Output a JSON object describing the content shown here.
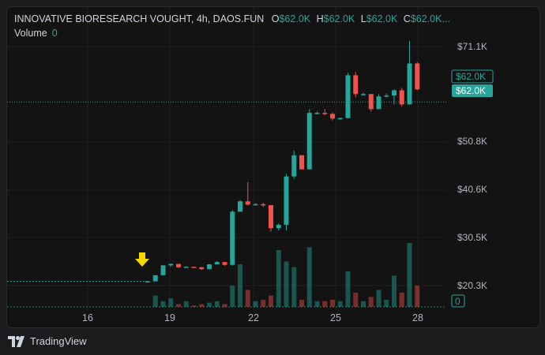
{
  "legend": {
    "title": "INNOVATIVE BIORESEARCH VOUGHT, 4h, DAOS.FUN",
    "o_label": "O",
    "o_value": "$62.0K",
    "h_label": "H",
    "h_value": "$62.0K",
    "l_label": "L",
    "l_value": "$62.0K",
    "c_label": "C",
    "c_value": "$62.0K...",
    "volume_label": "Volume",
    "volume_value": "0"
  },
  "footer": {
    "brand": "TradingView"
  },
  "colors": {
    "up": "#26a69a",
    "down": "#ef5350",
    "background": "#131313",
    "marker": "#f5d800"
  },
  "chart_data": {
    "type": "candlestick",
    "title": "INNOVATIVE BIORESEARCH VOUGHT, 4h, DAOS.FUN",
    "price_axis_ticks": [
      "$71.1K",
      "$50.8K",
      "$40.6K",
      "$30.5K",
      "$20.3K"
    ],
    "price_axis_values": [
      71100,
      50800,
      40600,
      30500,
      20300
    ],
    "time_axis_ticks": [
      "16",
      "19",
      "22",
      "25",
      "28"
    ],
    "current_price_label": "$62.0K",
    "last_price_label": "$62.0K",
    "volume_axis_label": "0",
    "candles": [
      {
        "o": 21200,
        "h": 21200,
        "l": 21200,
        "c": 21200
      },
      {
        "o": 21200,
        "h": 22500,
        "l": 21200,
        "c": 22500
      },
      {
        "o": 22500,
        "h": 24600,
        "l": 22500,
        "c": 24600
      },
      {
        "o": 24600,
        "h": 25000,
        "l": 24300,
        "c": 24900
      },
      {
        "o": 24900,
        "h": 24900,
        "l": 24000,
        "c": 24200
      },
      {
        "o": 24200,
        "h": 24400,
        "l": 24200,
        "c": 24300
      },
      {
        "o": 24300,
        "h": 24300,
        "l": 24100,
        "c": 24200
      },
      {
        "o": 24200,
        "h": 24200,
        "l": 23600,
        "c": 23800
      },
      {
        "o": 23800,
        "h": 24900,
        "l": 23800,
        "c": 24800
      },
      {
        "o": 24800,
        "h": 25500,
        "l": 24800,
        "c": 25300
      },
      {
        "o": 25300,
        "h": 25300,
        "l": 24500,
        "c": 24700
      },
      {
        "o": 24700,
        "h": 36300,
        "l": 24500,
        "c": 36000
      },
      {
        "o": 36000,
        "h": 38500,
        "l": 36000,
        "c": 38200
      },
      {
        "o": 38200,
        "h": 42300,
        "l": 37300,
        "c": 37500
      },
      {
        "o": 37500,
        "h": 37800,
        "l": 37300,
        "c": 37600
      },
      {
        "o": 37600,
        "h": 37900,
        "l": 37000,
        "c": 37400
      },
      {
        "o": 37400,
        "h": 37400,
        "l": 31800,
        "c": 32500
      },
      {
        "o": 32500,
        "h": 33500,
        "l": 32000,
        "c": 33200
      },
      {
        "o": 33200,
        "h": 44000,
        "l": 32000,
        "c": 43500
      },
      {
        "o": 43500,
        "h": 49000,
        "l": 43000,
        "c": 48000
      },
      {
        "o": 48000,
        "h": 48000,
        "l": 45000,
        "c": 45000
      },
      {
        "o": 45000,
        "h": 57800,
        "l": 45000,
        "c": 57000
      },
      {
        "o": 57000,
        "h": 57300,
        "l": 56700,
        "c": 57000
      },
      {
        "o": 57000,
        "h": 57800,
        "l": 56500,
        "c": 56800
      },
      {
        "o": 56800,
        "h": 57100,
        "l": 55400,
        "c": 55800
      },
      {
        "o": 55800,
        "h": 56000,
        "l": 55500,
        "c": 55900
      },
      {
        "o": 55900,
        "h": 65500,
        "l": 55800,
        "c": 65000
      },
      {
        "o": 65000,
        "h": 65700,
        "l": 60300,
        "c": 61000
      },
      {
        "o": 61000,
        "h": 61300,
        "l": 60700,
        "c": 61000
      },
      {
        "o": 61000,
        "h": 61000,
        "l": 57300,
        "c": 57800
      },
      {
        "o": 57800,
        "h": 61000,
        "l": 57800,
        "c": 60500
      },
      {
        "o": 60500,
        "h": 61100,
        "l": 60300,
        "c": 60700
      },
      {
        "o": 60700,
        "h": 62000,
        "l": 58800,
        "c": 61800
      },
      {
        "o": 61800,
        "h": 62300,
        "l": 58400,
        "c": 58800
      },
      {
        "o": 58800,
        "h": 72300,
        "l": 58800,
        "c": 67500
      },
      {
        "o": 67500,
        "h": 67800,
        "l": 61800,
        "c": 62000
      }
    ],
    "volumes": [
      0,
      8,
      4,
      6,
      2,
      4,
      1,
      2,
      3,
      4,
      2,
      15,
      30,
      12,
      4,
      5,
      8,
      40,
      32,
      28,
      5,
      42,
      4,
      4,
      5,
      4,
      25,
      10,
      4,
      7,
      12,
      5,
      22,
      10,
      45,
      15
    ]
  }
}
